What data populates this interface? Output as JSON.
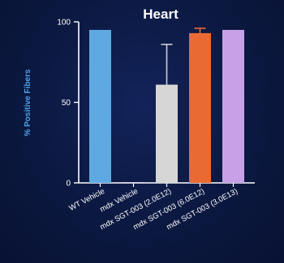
{
  "chart_data": {
    "type": "bar",
    "title": "Heart",
    "xlabel": "",
    "ylabel": "% Positive Fibers",
    "ylim": [
      0,
      100
    ],
    "yticks": [
      "0",
      "50",
      "100"
    ],
    "grid": false,
    "categories": [
      "WT Vehicle",
      "mdx Vehicle",
      "mdx SGT-003 (2.0E12)",
      "mdx SGT-003 (6.0E12)",
      "mdx SGT-003 (3.0E13)"
    ],
    "values": [
      95,
      0.5,
      61,
      93,
      95
    ],
    "error_upper": [
      null,
      null,
      86,
      96,
      null
    ],
    "colors": [
      "#5fa9e3",
      "#cfd7e8",
      "#d6d6d6",
      "#e96a32",
      "#c7a0e8"
    ],
    "axis_color": "#ffffff"
  }
}
